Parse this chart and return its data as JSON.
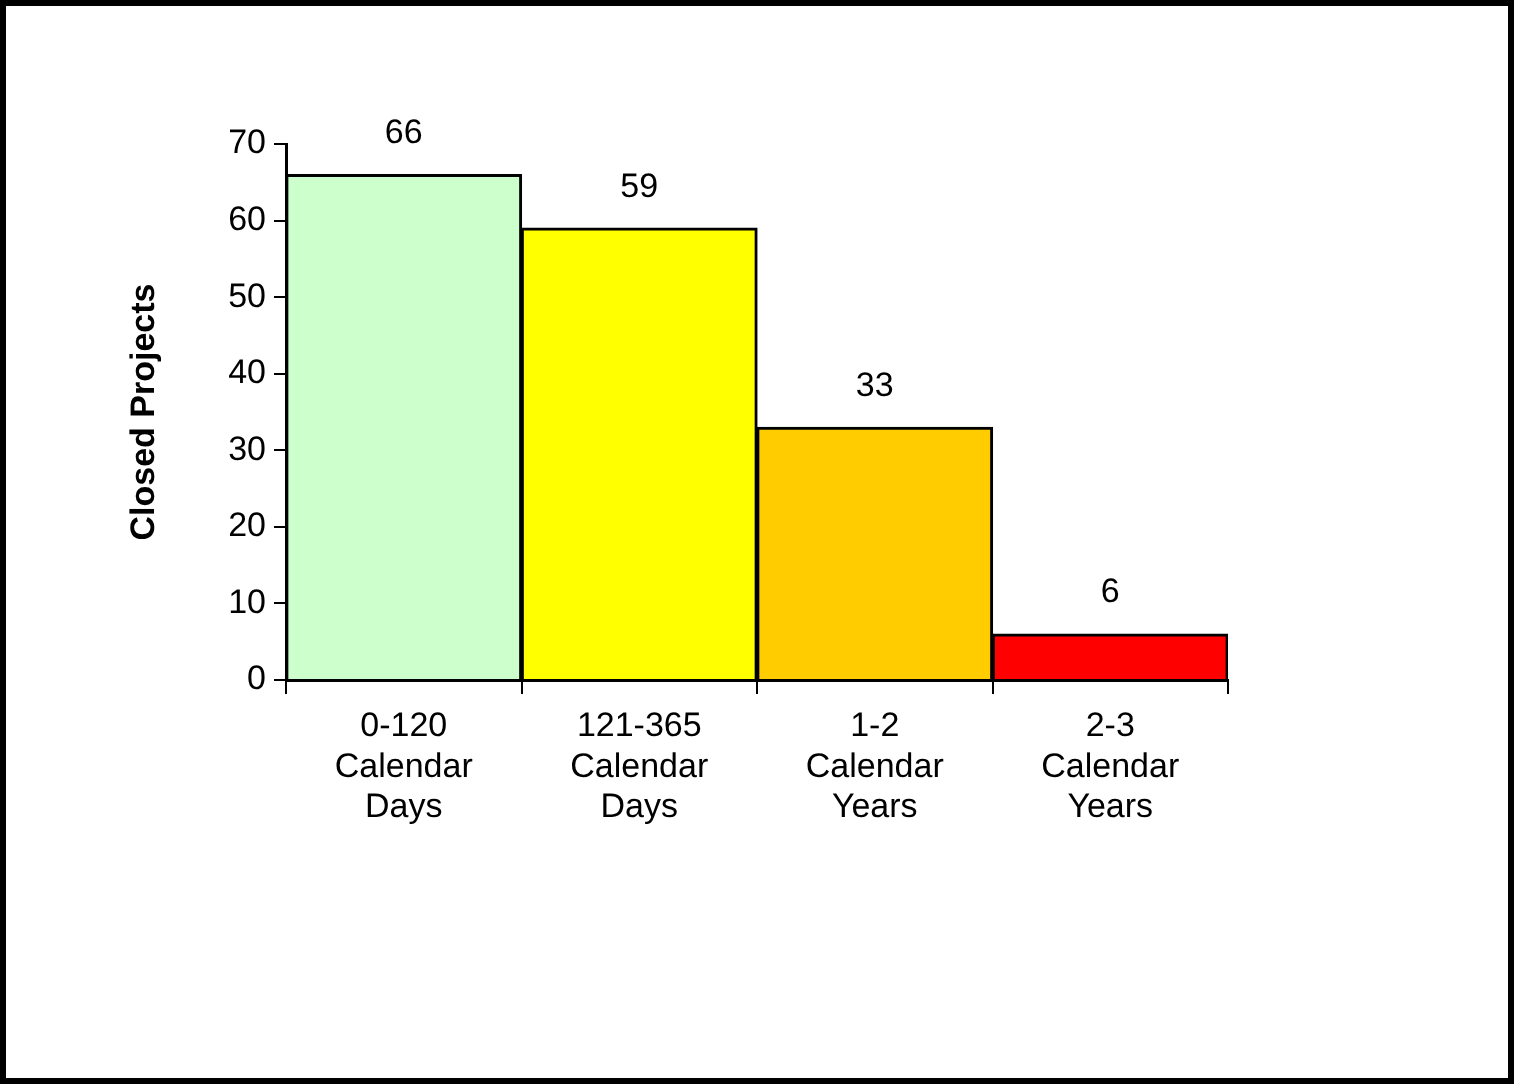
{
  "chart_data": {
    "type": "bar",
    "ylabel": "Closed Projects",
    "categories": [
      "0-120 Calendar Days",
      "121-365 Calendar Days",
      "1-2 Calendar Years",
      "2-3 Calendar Years"
    ],
    "values": [
      66,
      59,
      33,
      6
    ],
    "colors": [
      "#ccffcc",
      "#ffff00",
      "#ffcc00",
      "#ff0000"
    ],
    "ylim": [
      0,
      70
    ],
    "yticks": [
      0,
      10,
      20,
      30,
      40,
      50,
      60,
      70
    ],
    "grid": false,
    "legend": false,
    "data_labels": true
  }
}
